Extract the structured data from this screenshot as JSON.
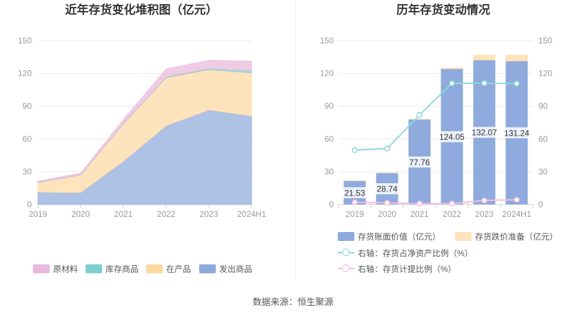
{
  "source": "数据来源：恒生聚源",
  "chart_data": [
    {
      "type": "area",
      "stacked": true,
      "title": "近年存货变化堆积图（亿元）",
      "xlabel": "",
      "ylabel": "",
      "categories": [
        "2019",
        "2020",
        "2021",
        "2022",
        "2023",
        "2024H1"
      ],
      "ylim": [
        0,
        150
      ],
      "yticks": [
        0,
        30,
        60,
        90,
        120,
        150
      ],
      "grid": true,
      "legend_position": "bottom",
      "series": [
        {
          "name": "原材料",
          "color": "#e9b8dc",
          "values": [
            1.2,
            1.5,
            3.8,
            7.5,
            7.8,
            8.7
          ]
        },
        {
          "name": "库存商品",
          "color": "#7ecfd0",
          "values": [
            0.3,
            0.2,
            0.3,
            0.5,
            0.8,
            2.0
          ]
        },
        {
          "name": "在产品",
          "color": "#fdd9a2",
          "values": [
            8.8,
            16.2,
            34.2,
            44.1,
            37.0,
            39.5
          ]
        },
        {
          "name": "发出商品",
          "color": "#8faadc",
          "values": [
            11.2,
            10.8,
            39.5,
            72.0,
            86.5,
            81.0
          ]
        }
      ]
    },
    {
      "type": "bar",
      "stacked": true,
      "title": "历年存货变动情况",
      "xlabel": "",
      "ylabel": "",
      "categories": [
        "2019",
        "2020",
        "2021",
        "2022",
        "2023",
        "2024H1"
      ],
      "ylim": [
        0,
        150
      ],
      "yticks": [
        0,
        30,
        60,
        90,
        120,
        150
      ],
      "y2lim": [
        0,
        150
      ],
      "y2ticks": [
        0,
        30,
        60,
        90,
        120,
        150
      ],
      "grid": true,
      "legend_position": "bottom",
      "bar_series": [
        {
          "name": "存货账面价值（亿元）",
          "color": "#8faadc",
          "values": [
            21.53,
            28.74,
            77.76,
            124.05,
            132.07,
            131.24
          ]
        },
        {
          "name": "存货跌价准备（亿元）",
          "color": "#fde3ba",
          "values": [
            0.45,
            0.45,
            0.8,
            1.3,
            5.0,
            5.8
          ]
        }
      ],
      "line_series": [
        {
          "name": "右轴：存货占净资产比例（%）",
          "color": "#8fd8dc",
          "axis": "right",
          "values": [
            49.8,
            51.2,
            81.9,
            110.9,
            111.0,
            110.6
          ]
        },
        {
          "name": "右轴：存货计提比例（%）",
          "color": "#f2bde0",
          "axis": "right",
          "values": [
            2.0,
            1.5,
            0.8,
            0.8,
            3.7,
            4.3
          ]
        }
      ]
    }
  ]
}
